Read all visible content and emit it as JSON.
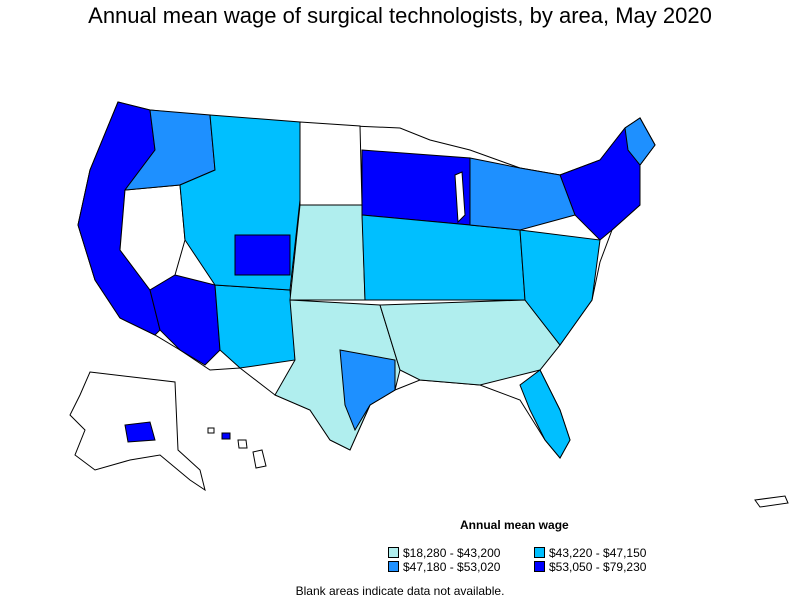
{
  "title": "Annual mean wage of surgical technologists, by area, May 2020",
  "legend": {
    "title": "Annual mean wage",
    "items": [
      {
        "label": "$18,280 - $43,200",
        "color": "#b0eeee"
      },
      {
        "label": "$43,220 - $47,150",
        "color": "#00bfff"
      },
      {
        "label": "$47,180 - $53,020",
        "color": "#1e90ff"
      },
      {
        "label": "$53,050 - $79,230",
        "color": "#0000ff"
      }
    ]
  },
  "note": "Blank areas indicate data not available.",
  "colors": {
    "tier1": "#b0eeee",
    "tier2": "#00bfff",
    "tier3": "#1e90ff",
    "tier4": "#0000ff",
    "blank": "#ffffff",
    "border": "#000000"
  }
}
